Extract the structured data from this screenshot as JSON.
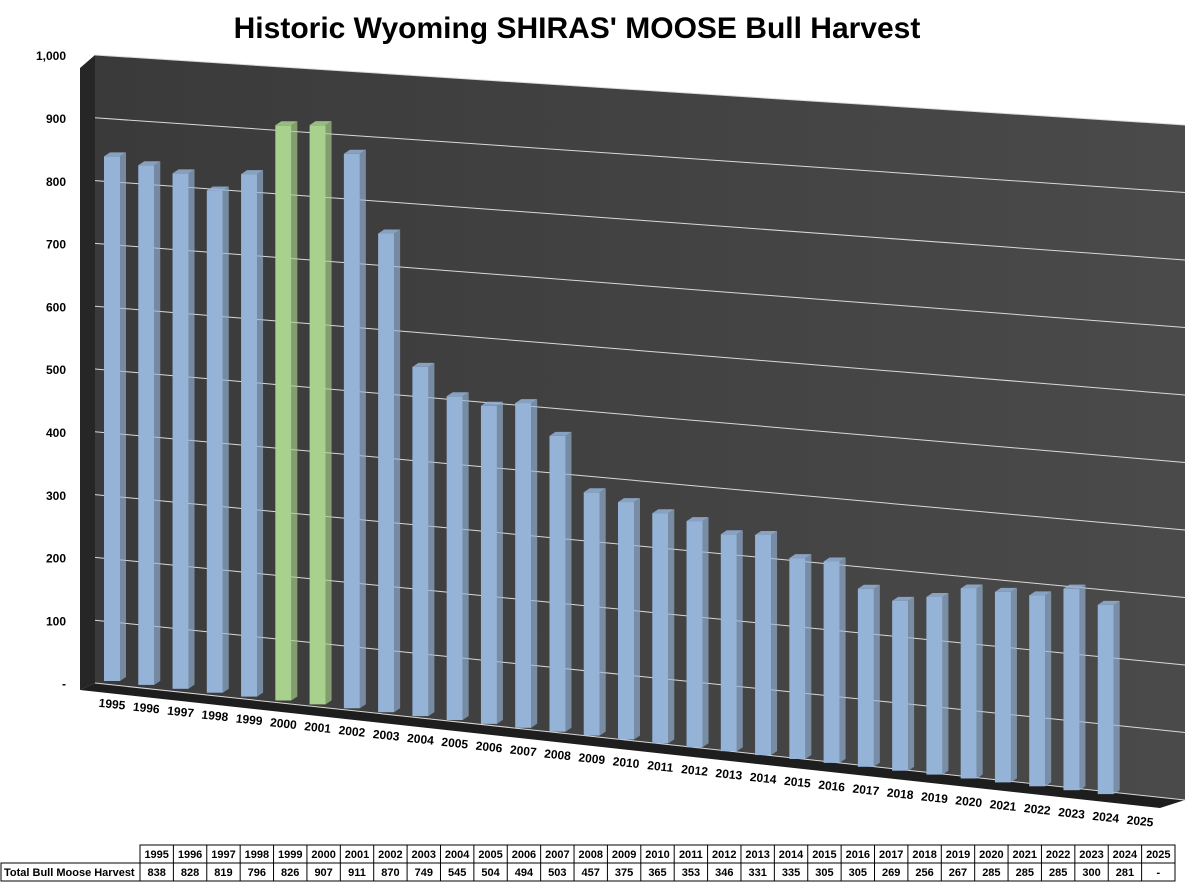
{
  "chart_data": {
    "type": "bar3d",
    "title": "Historic Wyoming SHIRAS' MOOSE Bull Harvest",
    "categories": [
      "1995",
      "1996",
      "1997",
      "1998",
      "1999",
      "2000",
      "2001",
      "2002",
      "2003",
      "2004",
      "2005",
      "2006",
      "2007",
      "2008",
      "2009",
      "2010",
      "2011",
      "2012",
      "2013",
      "2014",
      "2015",
      "2016",
      "2017",
      "2018",
      "2019",
      "2020",
      "2021",
      "2022",
      "2023",
      "2024",
      "2025"
    ],
    "series": [
      {
        "name": "Total Bull Moose Harvest",
        "color": "#95b3d7",
        "values": [
          838,
          828,
          819,
          796,
          826,
          907,
          911,
          870,
          749,
          545,
          504,
          494,
          503,
          457,
          375,
          365,
          353,
          346,
          331,
          335,
          305,
          305,
          269,
          256,
          267,
          285,
          285,
          285,
          300,
          281,
          null
        ],
        "value_labels": [
          "838",
          "828",
          "819",
          "796",
          "826",
          "907",
          "911",
          "870",
          "749",
          "545",
          "504",
          "494",
          "503",
          "457",
          "375",
          "365",
          "353",
          "346",
          "331",
          "335",
          "305",
          "305",
          "269",
          "256",
          "267",
          "285",
          "285",
          "285",
          "300",
          "281",
          "-"
        ],
        "colors": [
          "#95b3d7",
          "#95b3d7",
          "#95b3d7",
          "#95b3d7",
          "#95b3d7",
          "#a9d18e",
          "#a9d18e",
          "#95b3d7",
          "#95b3d7",
          "#95b3d7",
          "#95b3d7",
          "#95b3d7",
          "#95b3d7",
          "#95b3d7",
          "#95b3d7",
          "#95b3d7",
          "#95b3d7",
          "#95b3d7",
          "#95b3d7",
          "#95b3d7",
          "#95b3d7",
          "#95b3d7",
          "#95b3d7",
          "#95b3d7",
          "#95b3d7",
          "#95b3d7",
          "#95b3d7",
          "#95b3d7",
          "#95b3d7",
          "#95b3d7",
          "#95b3d7"
        ]
      }
    ],
    "ylim": [
      0,
      1000
    ],
    "yticks": [
      {
        "value": 0,
        "label": "-"
      },
      100,
      200,
      300,
      400,
      500,
      600,
      700,
      800,
      900,
      {
        "value": 1000,
        "label": "1,000"
      }
    ],
    "grid": true
  }
}
